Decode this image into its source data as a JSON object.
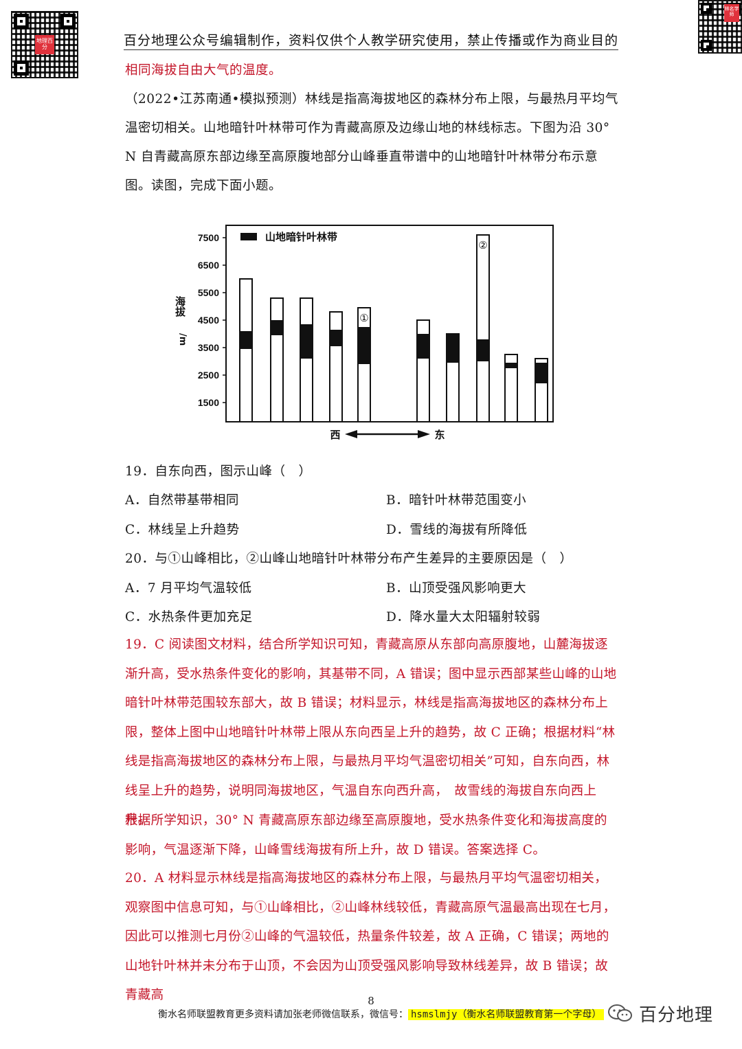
{
  "header": {
    "text": "百分地理公众号编辑制作，资料仅供个人教学研究使用，禁止传播或作为商业目的",
    "qr_logo_left": "地理百分",
    "qr_logo_right": "林名学师"
  },
  "prev_answer_tail": "相同海拔自由大气的温度。",
  "intro": "（2022•江苏南通•模拟预测）林线是指高海拔地区的森林分布上限，与最热月平均气温密切相关。山地暗针叶林带可作为青藏高原及边缘山地的林线标志。下图为沿 30° N 自青藏高原东部边缘至高原腹地部分山峰垂直带谱中的山地暗针叶林带分布示意图。读图，完成下面小题。",
  "chart_data": {
    "type": "bar",
    "legend": "山地暗针叶林带",
    "ylabel": "海拔/m",
    "yticks": [
      1500,
      2500,
      3500,
      4500,
      5500,
      6500,
      7500
    ],
    "ylim": [
      800,
      7950
    ],
    "x_direction": {
      "west": "西",
      "east": "东"
    },
    "peaks": [
      {
        "top": 6000,
        "belt_low": 3450,
        "belt_high": 4100,
        "mark": ""
      },
      {
        "top": 5300,
        "belt_low": 3950,
        "belt_high": 4500,
        "mark": ""
      },
      {
        "top": 5300,
        "belt_low": 3100,
        "belt_high": 4350,
        "mark": ""
      },
      {
        "top": 4800,
        "belt_low": 3550,
        "belt_high": 4150,
        "mark": ""
      },
      {
        "top": 4950,
        "belt_low": 2900,
        "belt_high": 4250,
        "mark": "①"
      },
      {
        "top": 4500,
        "belt_low": 3100,
        "belt_high": 4000,
        "mark": ""
      },
      {
        "top": 4000,
        "belt_low": 2950,
        "belt_high": 4000,
        "mark": ""
      },
      {
        "top": 7600,
        "belt_low": 3000,
        "belt_high": 3800,
        "mark": "②"
      },
      {
        "top": 3250,
        "belt_low": 2750,
        "belt_high": 2950,
        "mark": ""
      },
      {
        "top": 3100,
        "belt_low": 2200,
        "belt_high": 2950,
        "mark": ""
      }
    ]
  },
  "questions": [
    {
      "stem": "19．自东向西，图示山峰（　）",
      "options": [
        "A．自然带基带相同",
        "B．暗针叶林带范围变小",
        "C．林线呈上升趋势",
        "D．雪线的海拔有所降低"
      ]
    },
    {
      "stem": "20．与①山峰相比，②山峰山地暗针叶林带分布产生差异的主要原因是（　）",
      "options": [
        "A．7 月平均气温较低",
        "B．山顶受强风影响更大",
        "C．水热条件更加充足",
        "D．降水量大太阳辐射较弱"
      ]
    }
  ],
  "answers": {
    "a19": "19．C 阅读图文材料，结合所学知识可知，青藏高原从东部向高原腹地，山麓海拔逐渐升高，受水热条件变化的影响，其基带不同，A 错误；图中显示西部某些山峰的山地暗针叶林带范围较东部大，故 B 错误；材料显示，林线是指高海拔地区的森林分布上限，整体上图中山地暗针叶林带上限从东向西呈上升的趋势，故 C 正确；根据材料“林线是指高海拔地区的森林分布上限，与最热月平均气温密切相关”可知，自东向西，林线呈上升的趋势，说明同海拔地区，气温自东向西升高，　故雪线的海拔自东向西上升。",
    "a19b": "根据所学知识，30° N 青藏高原东部边缘至高原腹地，受水热条件变化和海拔高度的影响，气温逐渐下降，山峰雪线海拔有所上升，故 D 错误。答案选择 C。",
    "a20": "20．A 材料显示林线是指高海拔地区的森林分布上限，与最热月平均气温密切相关，观察图中信息可知，与①山峰相比，②山峰林线较低，青藏高原气温最高出现在七月，因此可以推测七月份②山峰的气温较低，热量条件较差，故 A 正确，C 错误；两地的山地针叶林并未分布于山顶，不会因为山顶受强风影响导致林线差异，故 B 错误；故青藏高"
  },
  "footer": {
    "page": "8",
    "text": "衡水名师联盟教育更多资料请加张老师微信联系，微信号：",
    "wechat": "hsmslmjy（衡水名师联盟教育第一个字母）",
    "brand": "百分地理"
  }
}
